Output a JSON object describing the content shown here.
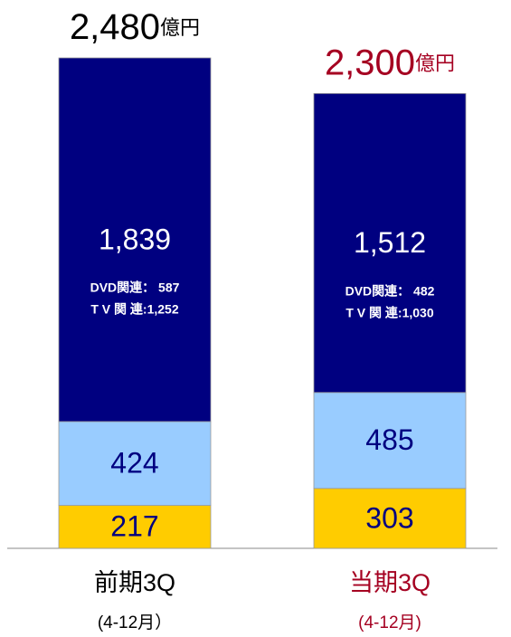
{
  "chart_data": {
    "type": "stacked-bar",
    "categories": [
      "前期3Q",
      "当期3Q"
    ],
    "category_sublabels": [
      "(4-12月）",
      "(4-12月)"
    ],
    "category_colors": [
      "#000000",
      "#a50021"
    ],
    "series": [
      {
        "color": "#ffcc00",
        "values": [
          217,
          303
        ]
      },
      {
        "color": "#99ccff",
        "values": [
          424,
          485
        ]
      },
      {
        "color": "#000080",
        "values": [
          1839,
          1512
        ],
        "value_labels": [
          "1,839",
          "1,512"
        ]
      }
    ],
    "totals": [
      2480,
      2300
    ],
    "total_labels": [
      "2,480",
      "2,300"
    ],
    "total_unit": "億円",
    "details": [
      [
        "DVD関連： 587",
        "T V 関 連:1,252"
      ],
      [
        "DVD関連： 482",
        "T V 関 連:1,030"
      ]
    ]
  }
}
